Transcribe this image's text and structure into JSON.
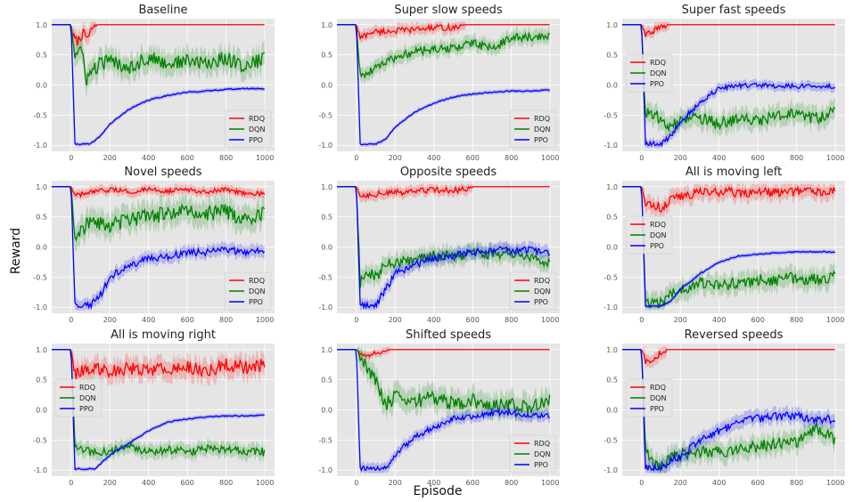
{
  "figure": {
    "xlabel": "Episode",
    "ylabel": "Reward"
  },
  "legend_labels": [
    "RDQ",
    "DQN",
    "PPO"
  ],
  "colors": {
    "RDQ": "#ff0000",
    "DQN": "#008000",
    "PPO": "#0000ff",
    "panel_bg": "#e5e5e5",
    "grid": "#ffffff"
  },
  "chart_data": [
    {
      "type": "line",
      "title": "Baseline",
      "legend": "bottom-right",
      "xlim": [
        -100,
        1050
      ],
      "ylim": [
        -1.1,
        1.1
      ],
      "xticks": [
        0,
        200,
        400,
        600,
        800,
        1000
      ],
      "yticks": [
        1.0,
        0.5,
        0.0,
        -0.5,
        -1.0
      ],
      "series": [
        {
          "name": "RDQ",
          "x": [
            -100,
            0,
            10,
            30,
            60,
            90,
            110,
            130,
            200,
            1000
          ],
          "y": [
            1.0,
            1.0,
            0.8,
            0.72,
            0.85,
            0.78,
            0.95,
            1.0,
            1.0,
            1.0
          ],
          "noise": 0.08,
          "end": 130
        },
        {
          "name": "DQN",
          "x": [
            -100,
            0,
            20,
            50,
            80,
            100,
            150,
            200,
            300,
            400,
            500,
            600,
            700,
            800,
            900,
            1000
          ],
          "y": [
            1.0,
            1.0,
            0.5,
            0.6,
            0.1,
            0.2,
            0.35,
            0.4,
            0.3,
            0.45,
            0.35,
            0.4,
            0.35,
            0.45,
            0.3,
            0.45
          ],
          "noise": 0.12
        },
        {
          "name": "PPO",
          "x": [
            -100,
            0,
            20,
            100,
            150,
            200,
            300,
            400,
            500,
            600,
            700,
            800,
            900,
            1000
          ],
          "y": [
            1.0,
            1.0,
            -0.98,
            -0.98,
            -0.85,
            -0.65,
            -0.4,
            -0.25,
            -0.17,
            -0.12,
            -0.1,
            -0.07,
            -0.06,
            -0.06
          ],
          "noise": 0.01
        }
      ]
    },
    {
      "type": "line",
      "title": "Super slow speeds",
      "legend": "bottom-right",
      "xlim": [
        -100,
        1050
      ],
      "ylim": [
        -1.1,
        1.1
      ],
      "xticks": [
        0,
        200,
        400,
        600,
        800,
        1000
      ],
      "yticks": [
        1.0,
        0.5,
        0.0,
        -0.5,
        -1.0
      ],
      "series": [
        {
          "name": "RDQ",
          "x": [
            -100,
            0,
            20,
            80,
            200,
            300,
            400,
            500,
            560,
            1000
          ],
          "y": [
            1.0,
            1.0,
            0.78,
            0.88,
            0.9,
            0.92,
            0.95,
            0.95,
            1.0,
            1.0
          ],
          "noise": 0.05,
          "end": 560
        },
        {
          "name": "DQN",
          "x": [
            -100,
            0,
            20,
            60,
            100,
            200,
            300,
            400,
            500,
            550,
            600,
            700,
            800,
            900,
            1000
          ],
          "y": [
            1.0,
            1.0,
            0.15,
            0.2,
            0.3,
            0.45,
            0.55,
            0.6,
            0.6,
            0.65,
            0.7,
            0.6,
            0.78,
            0.8,
            0.8
          ],
          "noise": 0.07
        },
        {
          "name": "PPO",
          "x": [
            -100,
            0,
            20,
            100,
            150,
            200,
            300,
            400,
            500,
            600,
            700,
            800,
            900,
            1000
          ],
          "y": [
            1.0,
            1.0,
            -0.98,
            -0.98,
            -0.9,
            -0.7,
            -0.45,
            -0.3,
            -0.2,
            -0.15,
            -0.12,
            -0.1,
            -0.1,
            -0.08
          ],
          "noise": 0.01
        }
      ]
    },
    {
      "type": "line",
      "title": "Super fast speeds",
      "legend": "center-left",
      "xlim": [
        -100,
        1050
      ],
      "ylim": [
        -1.1,
        1.1
      ],
      "xticks": [
        0,
        200,
        400,
        600,
        800,
        1000
      ],
      "yticks": [
        1.0,
        0.5,
        0.0,
        -0.5,
        -1.0
      ],
      "series": [
        {
          "name": "RDQ",
          "x": [
            -100,
            0,
            20,
            60,
            100,
            140,
            1000
          ],
          "y": [
            1.0,
            1.0,
            0.85,
            0.9,
            0.95,
            1.0,
            1.0
          ],
          "noise": 0.05,
          "end": 140
        },
        {
          "name": "DQN",
          "x": [
            -100,
            0,
            20,
            60,
            100,
            150,
            200,
            300,
            400,
            500,
            600,
            700,
            800,
            900,
            1000
          ],
          "y": [
            1.0,
            1.0,
            -0.5,
            -0.45,
            -0.6,
            -0.7,
            -0.6,
            -0.55,
            -0.65,
            -0.55,
            -0.6,
            -0.5,
            -0.5,
            -0.55,
            -0.45
          ],
          "noise": 0.1
        },
        {
          "name": "PPO",
          "x": [
            -100,
            0,
            20,
            100,
            150,
            200,
            250,
            300,
            400,
            500,
            600,
            700,
            800,
            900,
            1000
          ],
          "y": [
            1.0,
            1.0,
            -0.98,
            -0.98,
            -0.85,
            -0.6,
            -0.45,
            -0.3,
            -0.05,
            -0.02,
            0.0,
            -0.02,
            -0.02,
            -0.02,
            -0.02
          ],
          "noise": 0.04
        }
      ]
    },
    {
      "type": "line",
      "title": "Novel speeds",
      "legend": "bottom-right",
      "xlim": [
        -100,
        1050
      ],
      "ylim": [
        -1.1,
        1.1
      ],
      "xticks": [
        0,
        200,
        400,
        600,
        800,
        1000
      ],
      "yticks": [
        1.0,
        0.5,
        0.0,
        -0.5,
        -1.0
      ],
      "series": [
        {
          "name": "RDQ",
          "x": [
            -100,
            0,
            20,
            100,
            200,
            300,
            400,
            500,
            600,
            700,
            800,
            900,
            1000
          ],
          "y": [
            1.0,
            1.0,
            0.85,
            0.9,
            0.95,
            0.92,
            0.95,
            0.93,
            0.95,
            0.92,
            0.95,
            0.9,
            0.88
          ],
          "noise": 0.04
        },
        {
          "name": "DQN",
          "x": [
            -100,
            0,
            20,
            50,
            100,
            200,
            300,
            400,
            500,
            600,
            700,
            800,
            900,
            1000
          ],
          "y": [
            1.0,
            1.0,
            0.2,
            0.3,
            0.4,
            0.35,
            0.45,
            0.5,
            0.55,
            0.6,
            0.55,
            0.6,
            0.45,
            0.55
          ],
          "noise": 0.13
        },
        {
          "name": "PPO",
          "x": [
            -100,
            0,
            20,
            100,
            150,
            200,
            300,
            400,
            500,
            600,
            700,
            800,
            900,
            1000
          ],
          "y": [
            1.0,
            1.0,
            -0.98,
            -0.98,
            -0.8,
            -0.5,
            -0.3,
            -0.2,
            -0.15,
            -0.1,
            -0.08,
            -0.05,
            -0.08,
            -0.05
          ],
          "noise": 0.06
        }
      ]
    },
    {
      "type": "line",
      "title": "Opposite speeds",
      "legend": "bottom-right",
      "xlim": [
        -100,
        1050
      ],
      "ylim": [
        -1.1,
        1.1
      ],
      "xticks": [
        0,
        200,
        400,
        600,
        800,
        1000
      ],
      "yticks": [
        1.0,
        0.5,
        0.0,
        -0.5,
        -1.0
      ],
      "series": [
        {
          "name": "RDQ",
          "x": [
            -100,
            0,
            20,
            100,
            200,
            300,
            400,
            500,
            560,
            600,
            1000
          ],
          "y": [
            1.0,
            1.0,
            0.85,
            0.88,
            0.9,
            0.92,
            0.95,
            0.93,
            0.97,
            1.0,
            1.0
          ],
          "noise": 0.05,
          "end": 600
        },
        {
          "name": "DQN",
          "x": [
            -100,
            0,
            20,
            60,
            100,
            150,
            200,
            300,
            400,
            500,
            600,
            700,
            800,
            900,
            1000
          ],
          "y": [
            1.0,
            1.0,
            -0.6,
            -0.4,
            -0.5,
            -0.3,
            -0.25,
            -0.2,
            -0.15,
            -0.15,
            -0.1,
            -0.15,
            -0.1,
            -0.15,
            -0.3
          ],
          "noise": 0.09
        },
        {
          "name": "PPO",
          "x": [
            -100,
            0,
            20,
            100,
            150,
            200,
            300,
            400,
            500,
            600,
            700,
            800,
            900,
            1000
          ],
          "y": [
            1.0,
            1.0,
            -0.98,
            -0.98,
            -0.7,
            -0.45,
            -0.3,
            -0.2,
            -0.15,
            -0.08,
            -0.05,
            -0.05,
            -0.05,
            -0.1
          ],
          "noise": 0.06
        }
      ]
    },
    {
      "type": "line",
      "title": "All is moving left",
      "legend": "center-left",
      "xlim": [
        -100,
        1050
      ],
      "ylim": [
        -1.1,
        1.1
      ],
      "xticks": [
        0,
        200,
        400,
        600,
        800,
        1000
      ],
      "yticks": [
        1.0,
        0.5,
        0.0,
        -0.5,
        -1.0
      ],
      "series": [
        {
          "name": "RDQ",
          "x": [
            -100,
            0,
            20,
            60,
            100,
            150,
            200,
            300,
            400,
            500,
            600,
            700,
            800,
            900,
            1000
          ],
          "y": [
            1.0,
            1.0,
            0.75,
            0.7,
            0.65,
            0.8,
            0.85,
            0.9,
            0.92,
            0.9,
            0.92,
            0.9,
            0.93,
            0.92,
            0.95
          ],
          "noise": 0.08
        },
        {
          "name": "DQN",
          "x": [
            -100,
            0,
            20,
            100,
            150,
            200,
            300,
            400,
            500,
            600,
            700,
            800,
            900,
            1000
          ],
          "y": [
            1.0,
            1.0,
            -0.95,
            -0.95,
            -0.8,
            -0.7,
            -0.6,
            -0.65,
            -0.6,
            -0.55,
            -0.55,
            -0.5,
            -0.55,
            -0.5
          ],
          "noise": 0.1
        },
        {
          "name": "PPO",
          "x": [
            -100,
            0,
            20,
            100,
            150,
            200,
            300,
            400,
            500,
            600,
            700,
            800,
            900,
            1000
          ],
          "y": [
            1.0,
            1.0,
            -0.98,
            -0.98,
            -0.9,
            -0.7,
            -0.45,
            -0.25,
            -0.15,
            -0.12,
            -0.1,
            -0.08,
            -0.08,
            -0.08
          ],
          "noise": 0.01
        }
      ]
    },
    {
      "type": "line",
      "title": "All is moving right",
      "legend": "center-left",
      "xlim": [
        -100,
        1050
      ],
      "ylim": [
        -1.1,
        1.1
      ],
      "xticks": [
        0,
        200,
        400,
        600,
        800,
        1000
      ],
      "yticks": [
        1.0,
        0.5,
        0.0,
        -0.5,
        -1.0
      ],
      "series": [
        {
          "name": "RDQ",
          "x": [
            -100,
            0,
            20,
            60,
            100,
            200,
            300,
            400,
            500,
            600,
            700,
            800,
            900,
            1000
          ],
          "y": [
            1.0,
            1.0,
            0.6,
            0.65,
            0.7,
            0.65,
            0.7,
            0.65,
            0.7,
            0.7,
            0.65,
            0.75,
            0.7,
            0.75
          ],
          "noise": 0.11
        },
        {
          "name": "DQN",
          "x": [
            -100,
            0,
            20,
            100,
            200,
            300,
            400,
            500,
            600,
            700,
            800,
            900,
            1000
          ],
          "y": [
            1.0,
            1.0,
            -0.6,
            -0.7,
            -0.7,
            -0.6,
            -0.7,
            -0.65,
            -0.7,
            -0.65,
            -0.65,
            -0.7,
            -0.7
          ],
          "noise": 0.07
        },
        {
          "name": "PPO",
          "x": [
            -100,
            0,
            20,
            120,
            150,
            200,
            300,
            400,
            500,
            600,
            700,
            800,
            900,
            1000
          ],
          "y": [
            1.0,
            1.0,
            -0.98,
            -0.98,
            -0.9,
            -0.75,
            -0.55,
            -0.35,
            -0.2,
            -0.15,
            -0.12,
            -0.1,
            -0.1,
            -0.08
          ],
          "noise": 0.01
        }
      ]
    },
    {
      "type": "line",
      "title": "Shifted speeds",
      "legend": "bottom-right",
      "xlim": [
        -100,
        1050
      ],
      "ylim": [
        -1.1,
        1.1
      ],
      "xticks": [
        0,
        200,
        400,
        600,
        800,
        1000
      ],
      "yticks": [
        1.0,
        0.5,
        0.0,
        -0.5,
        -1.0
      ],
      "series": [
        {
          "name": "RDQ",
          "x": [
            -100,
            0,
            20,
            60,
            100,
            150,
            170,
            1000
          ],
          "y": [
            1.0,
            1.0,
            0.92,
            0.9,
            0.95,
            0.97,
            1.0,
            1.0
          ],
          "noise": 0.03,
          "end": 170
        },
        {
          "name": "DQN",
          "x": [
            -100,
            0,
            20,
            50,
            100,
            150,
            200,
            300,
            400,
            500,
            600,
            700,
            800,
            900,
            1000
          ],
          "y": [
            1.0,
            1.0,
            0.9,
            0.7,
            0.5,
            0.1,
            0.2,
            0.15,
            0.2,
            0.1,
            0.15,
            0.05,
            0.1,
            0.05,
            0.2
          ],
          "noise": 0.12
        },
        {
          "name": "PPO",
          "x": [
            -100,
            0,
            20,
            150,
            200,
            300,
            400,
            500,
            600,
            700,
            800,
            900,
            1000
          ],
          "y": [
            1.0,
            1.0,
            -0.98,
            -0.98,
            -0.75,
            -0.45,
            -0.3,
            -0.15,
            -0.1,
            -0.05,
            -0.05,
            -0.1,
            -0.1
          ],
          "noise": 0.05
        }
      ]
    },
    {
      "type": "line",
      "title": "Reversed speeds",
      "legend": "center-left",
      "xlim": [
        -100,
        1050
      ],
      "ylim": [
        -1.1,
        1.1
      ],
      "xticks": [
        0,
        200,
        400,
        600,
        800,
        1000
      ],
      "yticks": [
        1.0,
        0.5,
        0.0,
        -0.5,
        -1.0
      ],
      "series": [
        {
          "name": "RDQ",
          "x": [
            -100,
            0,
            20,
            60,
            100,
            130,
            1000
          ],
          "y": [
            1.0,
            1.0,
            0.8,
            0.85,
            0.95,
            1.0,
            1.0
          ],
          "noise": 0.06,
          "end": 130
        },
        {
          "name": "DQN",
          "x": [
            -100,
            0,
            20,
            60,
            100,
            150,
            200,
            300,
            400,
            500,
            600,
            700,
            800,
            900,
            1000
          ],
          "y": [
            1.0,
            1.0,
            -0.65,
            -0.9,
            -0.95,
            -0.8,
            -0.75,
            -0.7,
            -0.7,
            -0.65,
            -0.6,
            -0.55,
            -0.55,
            -0.3,
            -0.5
          ],
          "noise": 0.1
        },
        {
          "name": "PPO",
          "x": [
            -100,
            0,
            20,
            100,
            150,
            200,
            300,
            400,
            500,
            600,
            700,
            800,
            900,
            1000
          ],
          "y": [
            1.0,
            1.0,
            -0.98,
            -0.98,
            -0.85,
            -0.8,
            -0.5,
            -0.35,
            -0.2,
            -0.15,
            -0.1,
            -0.1,
            -0.15,
            -0.15
          ],
          "noise": 0.07
        }
      ]
    }
  ]
}
